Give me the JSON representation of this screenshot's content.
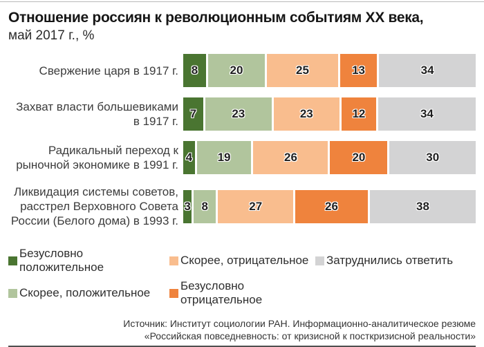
{
  "title": "Отношение россиян к революционным событиям XX века,",
  "subtitle": "май 2017 г., %",
  "chart_data": {
    "type": "bar",
    "orientation": "horizontal",
    "stacked": true,
    "unit": "%",
    "value_labels": true,
    "legend_position": "bottom",
    "categories": [
      "Свержение царя в 1917 г.",
      "Захват власти большевиками\nв 1917 г.",
      "Радикальный переход к\nрыночной экономике в 1991 г.",
      "Ликвидация системы советов,\nрасстрел Верховного Совета\nРоссии (Белого дома) в 1993 г."
    ],
    "series": [
      {
        "name": "Безусловно положительное",
        "color": "#4a7531",
        "values": [
          8,
          7,
          4,
          3
        ]
      },
      {
        "name": "Скорее, положительное",
        "color": "#b1c59d",
        "values": [
          20,
          23,
          19,
          8
        ]
      },
      {
        "name": "Скорее, отрицательное",
        "color": "#f9bd8e",
        "values": [
          25,
          23,
          26,
          27
        ]
      },
      {
        "name": "Безусловно отрицательное",
        "color": "#ef833d",
        "values": [
          13,
          12,
          20,
          26
        ]
      },
      {
        "name": "Затруднились ответить",
        "color": "#d3d3d4",
        "values": [
          34,
          34,
          30,
          38
        ]
      }
    ]
  },
  "source": {
    "line1": "Источник: Институт социологии РАН. Информационно-аналитическое резюме",
    "line2": "«Российская повседневность: от кризисной к посткризисной реальности»"
  }
}
